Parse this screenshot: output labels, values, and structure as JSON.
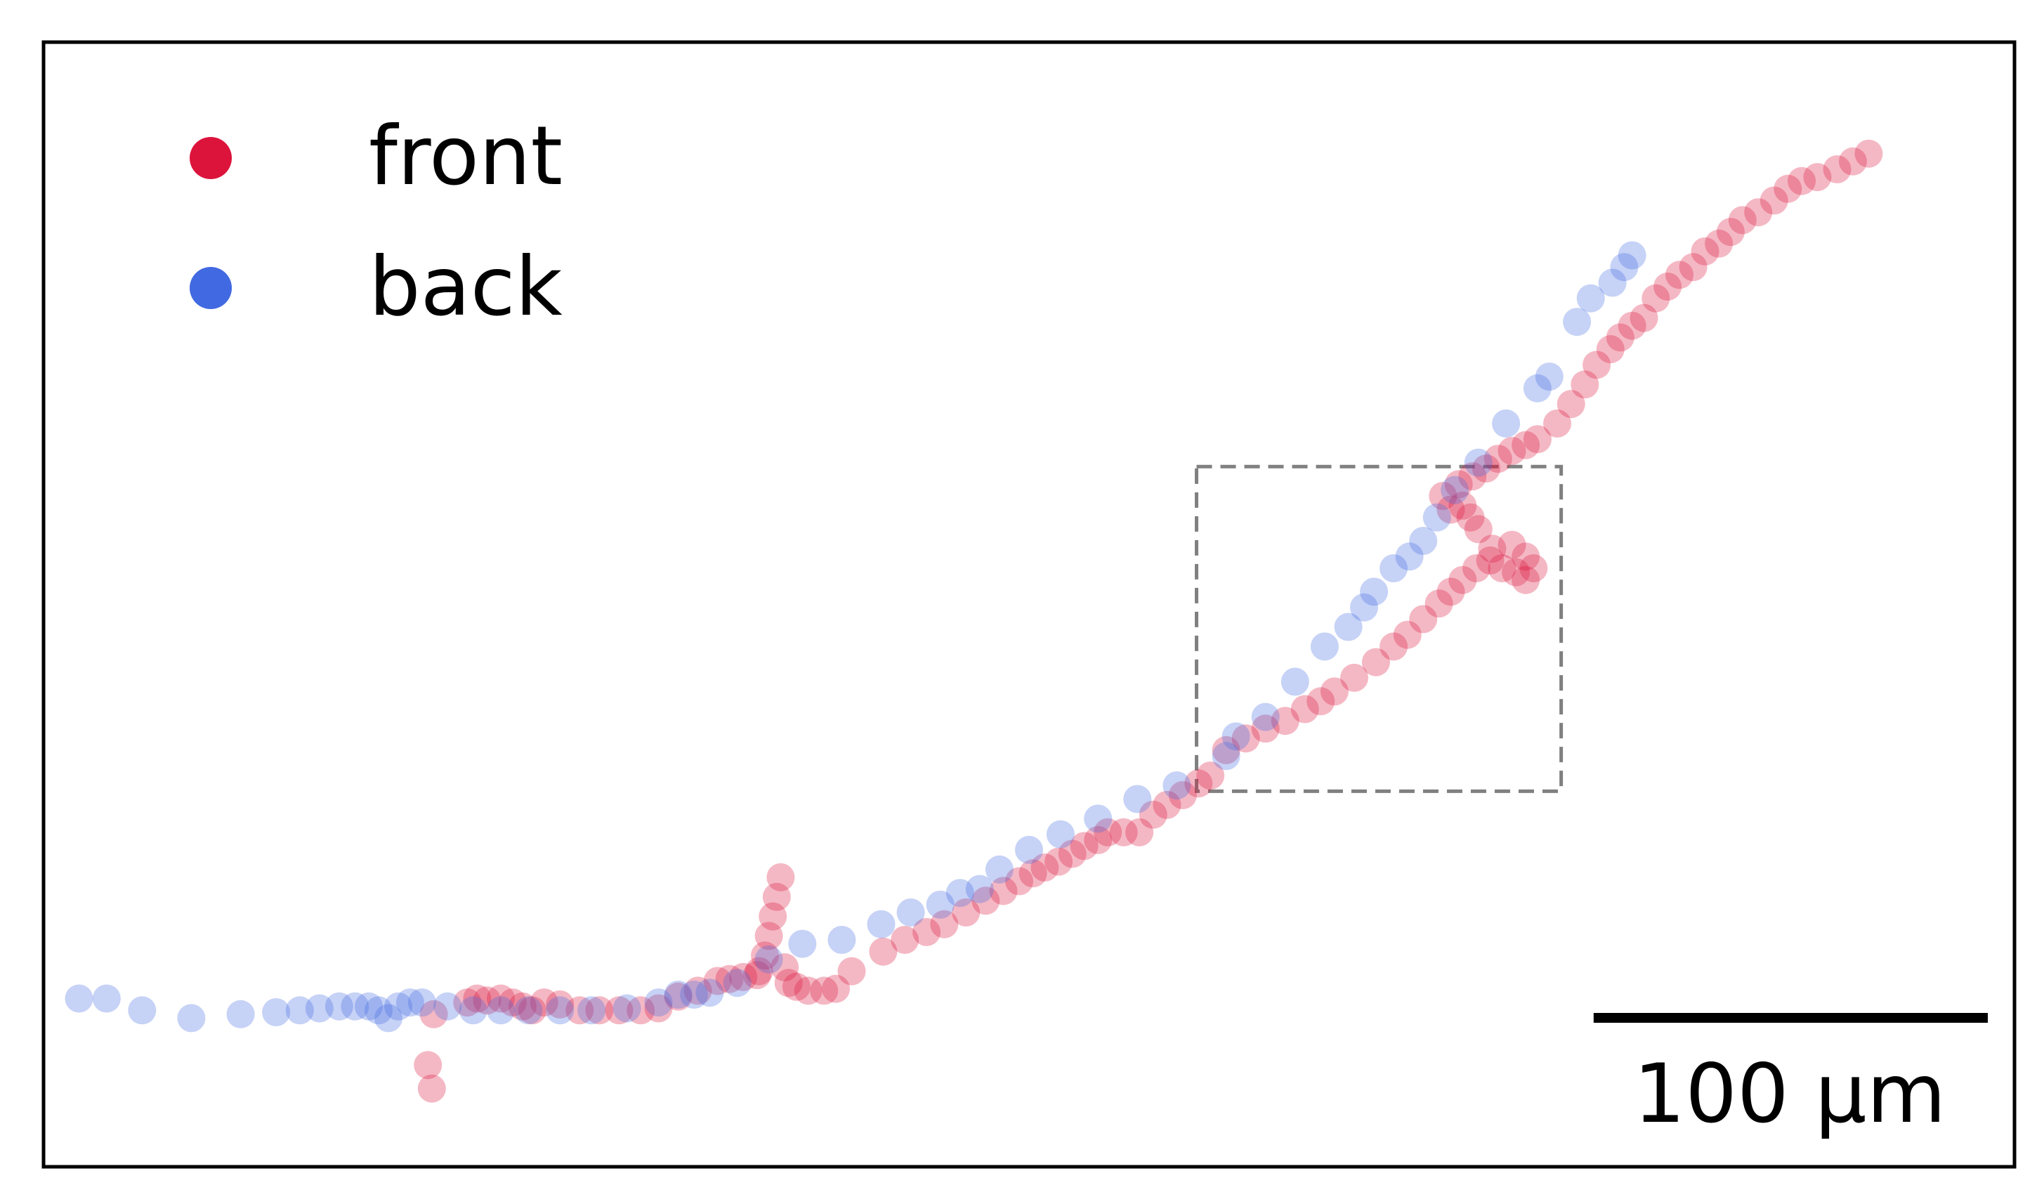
{
  "chart_data": {
    "type": "scatter",
    "title": "",
    "xlabel": "",
    "ylabel": "",
    "grid": false,
    "axes_visible": false,
    "xlim": [
      0,
      1000
    ],
    "ylim": [
      0,
      575
    ],
    "legend": {
      "placement": "top-left",
      "entries": [
        {
          "series": "front",
          "label": "front"
        },
        {
          "series": "back",
          "label": "back"
        }
      ]
    },
    "scale_bar": {
      "label": "100 µm",
      "length": 200
    },
    "inset_box": {
      "x": [
        585,
        770
      ],
      "y": [
        192,
        358
      ],
      "style": "dashed",
      "color": "#808080"
    },
    "series": [
      {
        "name": "front",
        "color": "#dc143c",
        "points": [
          [
            195,
            52
          ],
          [
            197,
            40
          ],
          [
            198,
            78
          ],
          [
            215,
            84
          ],
          [
            220,
            86
          ],
          [
            225,
            85
          ],
          [
            232,
            86
          ],
          [
            238,
            84
          ],
          [
            243,
            82
          ],
          [
            248,
            80
          ],
          [
            254,
            84
          ],
          [
            262,
            83
          ],
          [
            272,
            80
          ],
          [
            282,
            80
          ],
          [
            292,
            80
          ],
          [
            303,
            80
          ],
          [
            312,
            81
          ],
          [
            322,
            87
          ],
          [
            332,
            90
          ],
          [
            342,
            95
          ],
          [
            348,
            96
          ],
          [
            355,
            97
          ],
          [
            362,
            98
          ],
          [
            363,
            100
          ],
          [
            366,
            108
          ],
          [
            368,
            118
          ],
          [
            370,
            128
          ],
          [
            372,
            138
          ],
          [
            374,
            148
          ],
          [
            376,
            102
          ],
          [
            378,
            94
          ],
          [
            382,
            92
          ],
          [
            388,
            90
          ],
          [
            396,
            90
          ],
          [
            402,
            91
          ],
          [
            410,
            100
          ],
          [
            426,
            110
          ],
          [
            437,
            116
          ],
          [
            448,
            120
          ],
          [
            457,
            124
          ],
          [
            468,
            130
          ],
          [
            478,
            136
          ],
          [
            487,
            141
          ],
          [
            495,
            146
          ],
          [
            502,
            150
          ],
          [
            508,
            153
          ],
          [
            515,
            156
          ],
          [
            522,
            160
          ],
          [
            528,
            164
          ],
          [
            535,
            167
          ],
          [
            540,
            171
          ],
          [
            548,
            171
          ],
          [
            556,
            171
          ],
          [
            563,
            180
          ],
          [
            570,
            185
          ],
          [
            578,
            190
          ],
          [
            586,
            196
          ],
          [
            592,
            200
          ],
          [
            600,
            213
          ],
          [
            610,
            219
          ],
          [
            620,
            224
          ],
          [
            630,
            228
          ],
          [
            640,
            234
          ],
          [
            648,
            238
          ],
          [
            655,
            243
          ],
          [
            665,
            250
          ],
          [
            676,
            258
          ],
          [
            685,
            266
          ],
          [
            692,
            272
          ],
          [
            700,
            280
          ],
          [
            708,
            288
          ],
          [
            714,
            294
          ],
          [
            720,
            300
          ],
          [
            727,
            306
          ],
          [
            734,
            310
          ],
          [
            740,
            306
          ],
          [
            747,
            304
          ],
          [
            752,
            300
          ],
          [
            756,
            306
          ],
          [
            752,
            312
          ],
          [
            745,
            318
          ],
          [
            735,
            316
          ],
          [
            728,
            326
          ],
          [
            724,
            332
          ],
          [
            720,
            338
          ],
          [
            714,
            336
          ],
          [
            710,
            343
          ],
          [
            718,
            349
          ],
          [
            725,
            353
          ],
          [
            732,
            357
          ],
          [
            738,
            362
          ],
          [
            745,
            366
          ],
          [
            752,
            369
          ],
          [
            758,
            372
          ],
          [
            768,
            380
          ],
          [
            775,
            390
          ],
          [
            782,
            400
          ],
          [
            788,
            410
          ],
          [
            795,
            418
          ],
          [
            800,
            424
          ],
          [
            806,
            430
          ],
          [
            812,
            434
          ],
          [
            818,
            444
          ],
          [
            824,
            450
          ],
          [
            830,
            456
          ],
          [
            837,
            460
          ],
          [
            843,
            468
          ],
          [
            850,
            472
          ],
          [
            856,
            478
          ],
          [
            862,
            484
          ],
          [
            870,
            488
          ],
          [
            878,
            494
          ],
          [
            885,
            500
          ],
          [
            892,
            504
          ],
          [
            900,
            506
          ],
          [
            910,
            510
          ],
          [
            918,
            514
          ],
          [
            926,
            518
          ]
        ]
      },
      {
        "name": "back",
        "color": "#4169e1",
        "points": [
          [
            18,
            86
          ],
          [
            32,
            86
          ],
          [
            50,
            80
          ],
          [
            75,
            76
          ],
          [
            100,
            78
          ],
          [
            118,
            79
          ],
          [
            130,
            80
          ],
          [
            140,
            81
          ],
          [
            150,
            82
          ],
          [
            158,
            82
          ],
          [
            165,
            82
          ],
          [
            170,
            80
          ],
          [
            175,
            76
          ],
          [
            180,
            82
          ],
          [
            186,
            84
          ],
          [
            192,
            84
          ],
          [
            205,
            82
          ],
          [
            218,
            80
          ],
          [
            232,
            80
          ],
          [
            246,
            80
          ],
          [
            262,
            80
          ],
          [
            278,
            80
          ],
          [
            296,
            81
          ],
          [
            312,
            84
          ],
          [
            322,
            88
          ],
          [
            330,
            88
          ],
          [
            338,
            89
          ],
          [
            352,
            94
          ],
          [
            368,
            106
          ],
          [
            385,
            114
          ],
          [
            405,
            116
          ],
          [
            425,
            124
          ],
          [
            440,
            130
          ],
          [
            455,
            134
          ],
          [
            465,
            140
          ],
          [
            475,
            142
          ],
          [
            485,
            152
          ],
          [
            500,
            162
          ],
          [
            516,
            170
          ],
          [
            535,
            178
          ],
          [
            555,
            188
          ],
          [
            575,
            195
          ],
          [
            600,
            210
          ],
          [
            605,
            220
          ],
          [
            620,
            230
          ],
          [
            635,
            248
          ],
          [
            650,
            266
          ],
          [
            662,
            276
          ],
          [
            670,
            286
          ],
          [
            675,
            294
          ],
          [
            685,
            306
          ],
          [
            693,
            312
          ],
          [
            700,
            320
          ],
          [
            707,
            332
          ],
          [
            716,
            346
          ],
          [
            728,
            360
          ],
          [
            742,
            380
          ],
          [
            758,
            398
          ],
          [
            764,
            404
          ],
          [
            778,
            432
          ],
          [
            785,
            444
          ],
          [
            796,
            452
          ],
          [
            802,
            460
          ],
          [
            806,
            466
          ]
        ]
      }
    ]
  }
}
